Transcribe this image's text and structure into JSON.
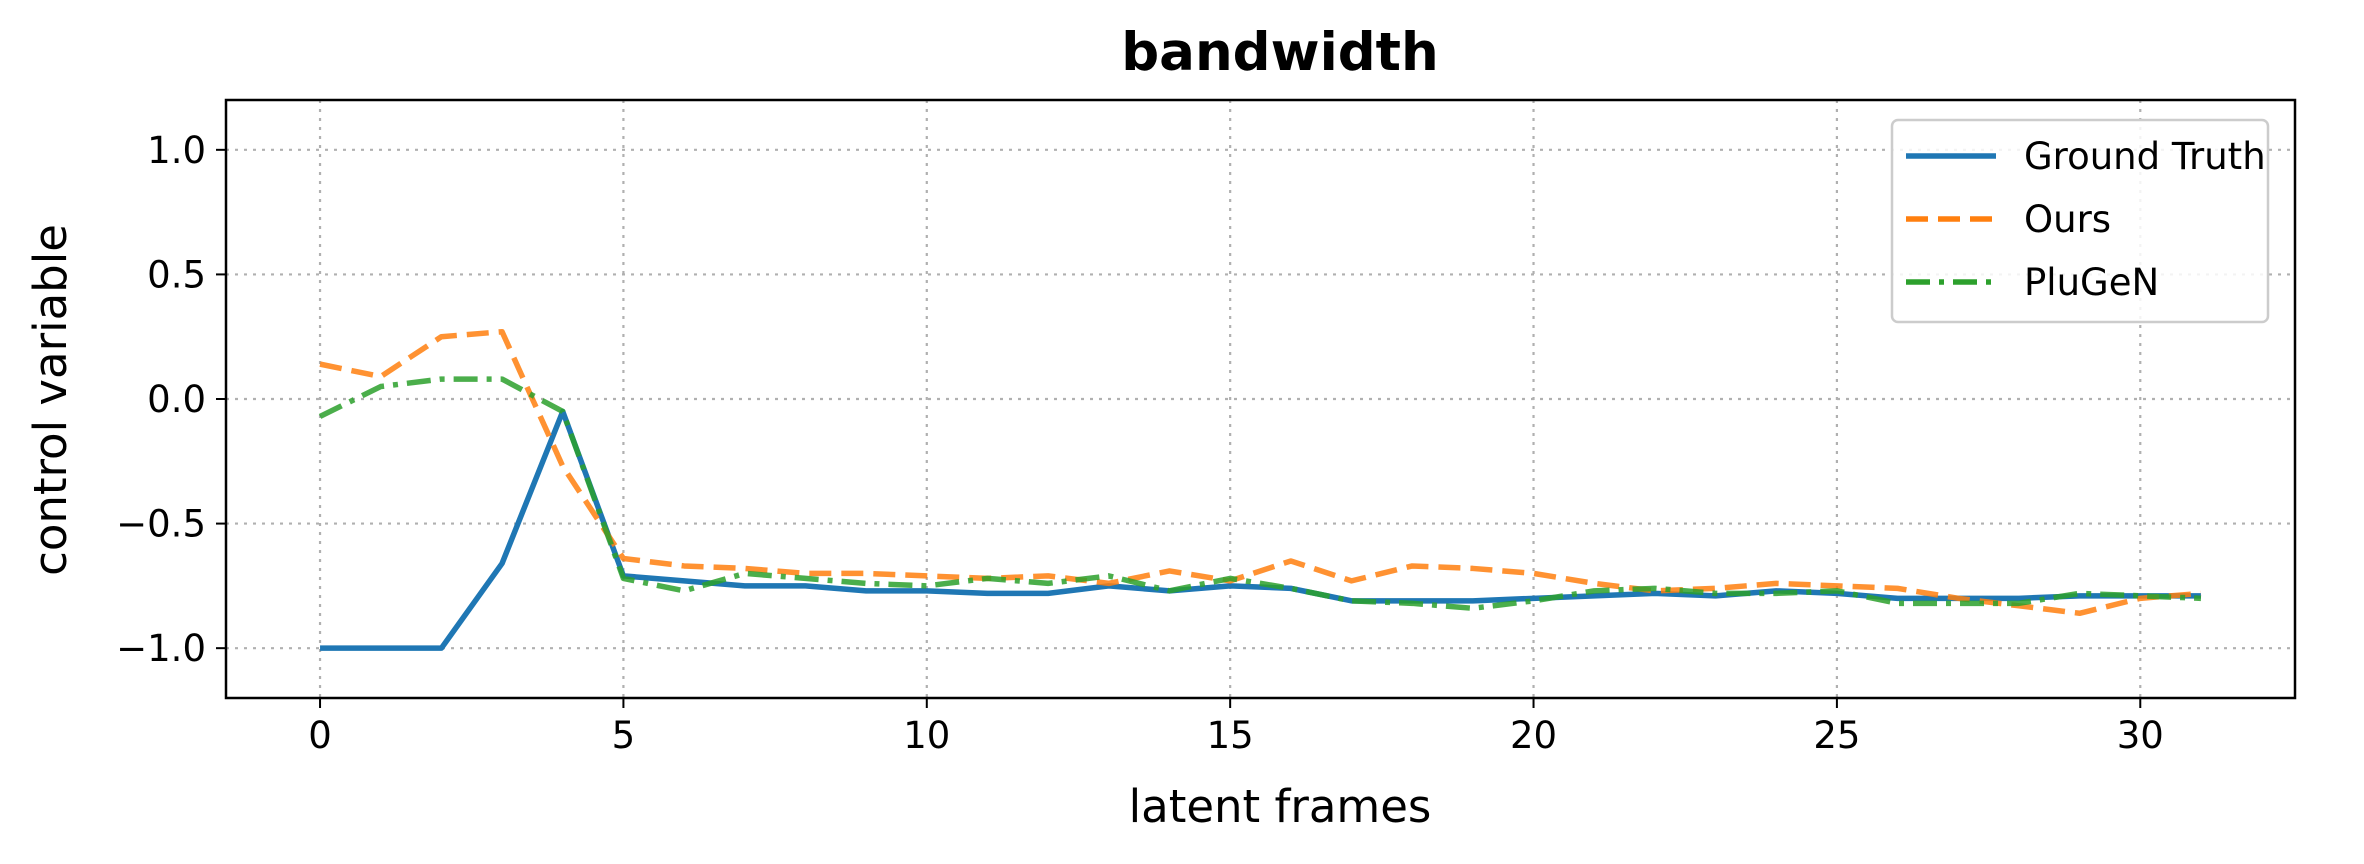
{
  "chart_data": {
    "type": "line",
    "title": "bandwidth",
    "xlabel": "latent frames",
    "ylabel": "control variable",
    "xlim": [
      -1.55,
      32.55
    ],
    "ylim": [
      -1.2,
      1.2
    ],
    "xticks": [
      0,
      5,
      10,
      15,
      20,
      25,
      30
    ],
    "yticks": [
      1.0,
      0.5,
      0.0,
      -0.5,
      -1.0
    ],
    "xtick_labels": [
      "0",
      "5",
      "10",
      "15",
      "20",
      "25",
      "30"
    ],
    "ytick_labels": [
      "1.0",
      "0.5",
      "0.0",
      "−0.5",
      "−1.0"
    ],
    "grid": true,
    "legend_position": "upper right",
    "x": [
      0,
      1,
      2,
      3,
      4,
      5,
      6,
      7,
      8,
      9,
      10,
      11,
      12,
      13,
      14,
      15,
      16,
      17,
      18,
      19,
      20,
      21,
      22,
      23,
      24,
      25,
      26,
      27,
      28,
      29,
      30,
      31
    ],
    "series": [
      {
        "name": "Ground Truth",
        "color": "#1f77b4",
        "style": "solid",
        "values": [
          -1.0,
          -1.0,
          -1.0,
          -0.66,
          -0.05,
          -0.71,
          -0.73,
          -0.75,
          -0.75,
          -0.77,
          -0.77,
          -0.78,
          -0.78,
          -0.75,
          -0.77,
          -0.75,
          -0.76,
          -0.81,
          -0.81,
          -0.81,
          -0.8,
          -0.79,
          -0.78,
          -0.79,
          -0.77,
          -0.78,
          -0.8,
          -0.8,
          -0.8,
          -0.79,
          -0.79,
          -0.79
        ]
      },
      {
        "name": "Ours",
        "color": "#ff7f0e",
        "style": "dashed",
        "values": [
          0.14,
          0.09,
          0.25,
          0.27,
          -0.27,
          -0.64,
          -0.67,
          -0.68,
          -0.7,
          -0.7,
          -0.71,
          -0.72,
          -0.71,
          -0.74,
          -0.69,
          -0.73,
          -0.65,
          -0.73,
          -0.67,
          -0.68,
          -0.7,
          -0.74,
          -0.77,
          -0.76,
          -0.74,
          -0.75,
          -0.76,
          -0.8,
          -0.83,
          -0.86,
          -0.8,
          -0.78
        ]
      },
      {
        "name": "PluGeN",
        "color": "#2ca02c",
        "style": "dashdot",
        "values": [
          -0.07,
          0.05,
          0.08,
          0.08,
          -0.05,
          -0.72,
          -0.77,
          -0.7,
          -0.72,
          -0.74,
          -0.75,
          -0.72,
          -0.74,
          -0.71,
          -0.77,
          -0.72,
          -0.76,
          -0.81,
          -0.82,
          -0.84,
          -0.81,
          -0.77,
          -0.76,
          -0.78,
          -0.78,
          -0.77,
          -0.82,
          -0.82,
          -0.82,
          -0.78,
          -0.79,
          -0.8
        ]
      }
    ]
  }
}
